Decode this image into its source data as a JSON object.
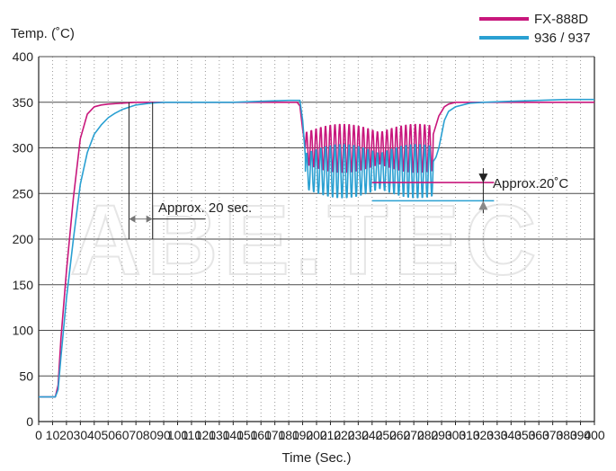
{
  "chart_data": {
    "type": "line",
    "title": "",
    "xlabel": "Time (Sec.)",
    "ylabel": "Temp. (˚C)",
    "xlim": [
      0,
      400
    ],
    "ylim": [
      0,
      400
    ],
    "xticks": [
      0,
      10,
      20,
      30,
      40,
      50,
      60,
      70,
      80,
      90,
      100,
      110,
      120,
      130,
      140,
      150,
      160,
      170,
      180,
      190,
      200,
      210,
      220,
      230,
      240,
      250,
      260,
      270,
      280,
      290,
      300,
      310,
      320,
      330,
      340,
      350,
      360,
      370,
      380,
      390,
      400
    ],
    "xtick_labels": [
      "0",
      "10",
      "20",
      "30",
      "40",
      "50",
      "60",
      "70",
      "80",
      "90",
      "100",
      "110",
      "120",
      "130",
      "140",
      "150",
      "160",
      "170",
      "180",
      "190",
      "200",
      "210",
      "220",
      "230",
      "240",
      "250",
      "260",
      "270",
      "280",
      "290",
      "300",
      "310",
      "320",
      "330",
      "340",
      "350",
      "360",
      "370",
      "380",
      "390",
      "400"
    ],
    "yticks": [
      0,
      50,
      100,
      150,
      200,
      250,
      300,
      350,
      400
    ],
    "ytick_labels": [
      "0",
      "50",
      "100",
      "150",
      "200",
      "250",
      "300",
      "350",
      "400"
    ],
    "grid": "dotted vertical, solid horizontal",
    "legend": "top-right",
    "watermark": "ABE.TEC",
    "series": [
      {
        "name": "FX-888D",
        "color": "#c8177c",
        "x": [
          0,
          12,
          14,
          16,
          20,
          25,
          30,
          35,
          40,
          45,
          50,
          60,
          70,
          80,
          100,
          120,
          140,
          160,
          180,
          186,
          188,
          190,
          192,
          280,
          282,
          284,
          286,
          288,
          290,
          292,
          295,
          300,
          305,
          310,
          320,
          340,
          360,
          380,
          400
        ],
        "y": [
          27,
          27,
          40,
          90,
          165,
          245,
          310,
          337,
          345,
          347,
          348,
          349,
          350,
          350,
          350,
          350,
          350,
          350,
          350,
          350,
          346,
          320,
          300,
          295,
          300,
          315,
          325,
          335,
          340,
          345,
          348,
          350,
          350,
          350,
          350,
          350,
          350,
          350,
          350
        ],
        "oscillation": {
          "x_start": 192,
          "x_end": 284,
          "min": 272,
          "max": 327
        }
      },
      {
        "name": "936 / 937",
        "color": "#2aa0d2",
        "x": [
          0,
          12,
          14,
          16,
          20,
          25,
          30,
          35,
          40,
          45,
          50,
          55,
          60,
          70,
          80,
          90,
          100,
          120,
          140,
          160,
          180,
          188,
          190,
          192,
          284,
          286,
          288,
          290,
          292,
          295,
          300,
          310,
          320,
          340,
          360,
          380,
          400
        ],
        "y": [
          27,
          27,
          35,
          70,
          135,
          200,
          260,
          295,
          315,
          325,
          333,
          338,
          342,
          347,
          349,
          350,
          350,
          350,
          350,
          351,
          352,
          352,
          330,
          290,
          285,
          290,
          300,
          315,
          330,
          340,
          345,
          349,
          350,
          351,
          352,
          353,
          353
        ],
        "oscillation": {
          "x_start": 192,
          "x_end": 284,
          "min": 244,
          "max": 305
        }
      }
    ],
    "annotations": [
      {
        "text": "Approx. 20 sec.",
        "type": "time-gap",
        "x_from": 65,
        "x_to": 82
      },
      {
        "text": "Approx.20˚C",
        "type": "temp-gap",
        "y_from": 242,
        "y_to": 262,
        "x": 320
      }
    ]
  }
}
